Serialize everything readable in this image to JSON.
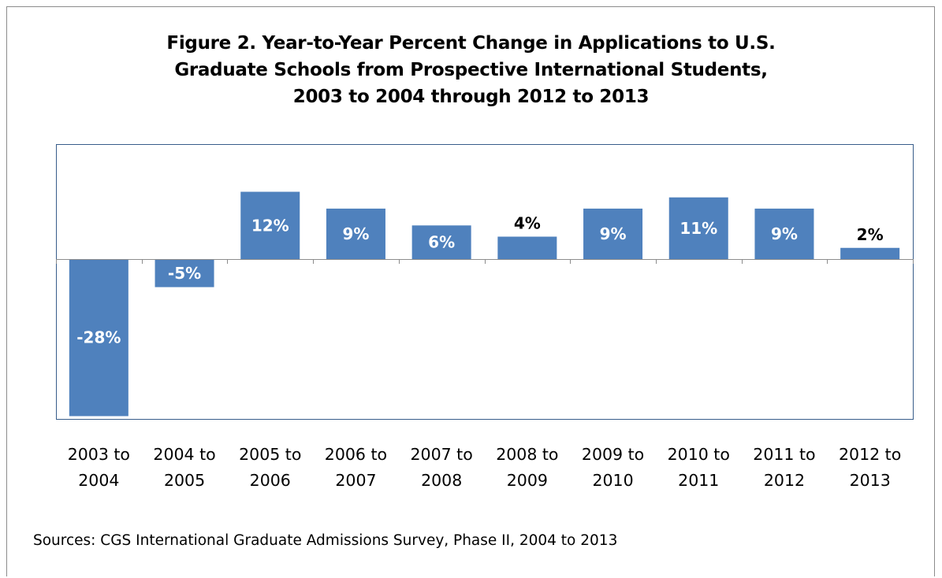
{
  "title_lines": [
    "Figure 2. Year-to-Year Percent Change in Applications to U.S.",
    "Graduate Schools from Prospective International Students,",
    "2003 to 2004 through 2012 to 2013"
  ],
  "source": "Sources: CGS International Graduate Admissions Survey, Phase II, 2004 to 2013",
  "colors": {
    "bar": "#4f81bd",
    "plot_border": "#385d8a",
    "axis": "#8c8c8c"
  },
  "chart_data": {
    "type": "bar",
    "title": "Figure 2. Year-to-Year Percent Change in Applications to U.S. Graduate Schools from Prospective International Students, 2003 to 2004 through 2012 to 2013",
    "categories": [
      [
        "2003 to",
        "2004"
      ],
      [
        "2004 to",
        "2005"
      ],
      [
        "2005 to",
        "2006"
      ],
      [
        "2006 to",
        "2007"
      ],
      [
        "2007 to",
        "2008"
      ],
      [
        "2008 to",
        "2009"
      ],
      [
        "2009 to",
        "2010"
      ],
      [
        "2010 to",
        "2011"
      ],
      [
        "2011 to",
        "2012"
      ],
      [
        "2012 to",
        "2013"
      ]
    ],
    "values": [
      -28,
      -5,
      12,
      9,
      6,
      4,
      9,
      11,
      9,
      2
    ],
    "data_labels": [
      "-28%",
      "-5%",
      "12%",
      "9%",
      "6%",
      "4%",
      "9%",
      "11%",
      "9%",
      "2%"
    ],
    "xlabel": "",
    "ylabel": "",
    "ylim": [
      -28.5,
      20.5
    ],
    "grid": false,
    "legend": "none"
  }
}
